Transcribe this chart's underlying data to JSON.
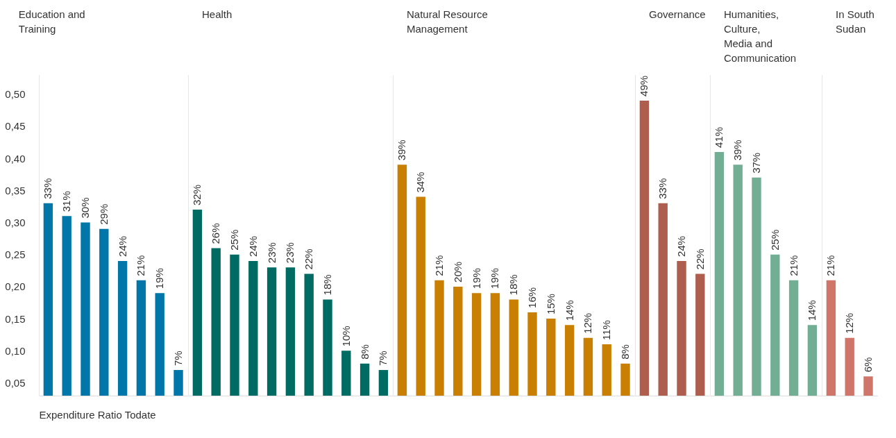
{
  "chart_data": [
    {
      "type": "bar",
      "title": "Education and Training",
      "categories": [
        null,
        null,
        null,
        null,
        null,
        null,
        null,
        null
      ],
      "values": [
        0.33,
        0.31,
        0.3,
        0.29,
        0.24,
        0.21,
        0.19,
        0.07
      ],
      "color": "#0077a8",
      "value_labels": [
        "33%",
        "31%",
        "30%",
        "29%",
        "24%",
        "21%",
        "19%",
        "7%"
      ],
      "ylim": [
        0.03,
        0.53
      ],
      "yticks": [
        {
          "value": 0.05,
          "label": "0,05"
        },
        {
          "value": 0.1,
          "label": "0,10"
        },
        {
          "value": 0.15,
          "label": "0,15"
        },
        {
          "value": 0.2,
          "label": "0,20"
        },
        {
          "value": 0.25,
          "label": "0,25"
        },
        {
          "value": 0.3,
          "label": "0,30"
        },
        {
          "value": 0.35,
          "label": "0,35"
        },
        {
          "value": 0.4,
          "label": "0,40"
        },
        {
          "value": 0.45,
          "label": "0,45"
        },
        {
          "value": 0.5,
          "label": "0,50"
        }
      ],
      "tick_labels": "y",
      "annotations": [
        "Expenditure Ratio Todate"
      ]
    },
    {
      "type": "bar",
      "title": "Health",
      "categories": [
        null,
        null,
        null,
        null,
        null,
        null,
        null,
        null,
        null,
        null,
        null
      ],
      "values": [
        0.32,
        0.26,
        0.25,
        0.24,
        0.23,
        0.23,
        0.22,
        0.18,
        0.1,
        0.08,
        0.07
      ],
      "color": "#006b63",
      "value_labels": [
        "32%",
        "26%",
        "25%",
        "24%",
        "23%",
        "23%",
        "22%",
        "18%",
        "10%",
        "8%",
        "7%"
      ],
      "ylim": [
        0.03,
        0.53
      ],
      "tick_labels": false
    },
    {
      "type": "bar",
      "title": "Natural Resource Management",
      "categories": [
        null,
        null,
        null,
        null,
        null,
        null,
        null,
        null,
        null,
        null,
        null,
        null,
        null
      ],
      "values": [
        0.39,
        0.34,
        0.21,
        0.2,
        0.19,
        0.19,
        0.18,
        0.16,
        0.15,
        0.14,
        0.12,
        0.11,
        0.08
      ],
      "color": "#c97f02",
      "value_labels": [
        "39%",
        "34%",
        "21%",
        "20%",
        "19%",
        "19%",
        "18%",
        "16%",
        "15%",
        "14%",
        "12%",
        "11%",
        "8%"
      ],
      "ylim": [
        0.03,
        0.53
      ],
      "tick_labels": false
    },
    {
      "type": "bar",
      "title": "Governance",
      "categories": [
        null,
        null,
        null,
        null
      ],
      "values": [
        0.49,
        0.33,
        0.24,
        0.22
      ],
      "color": "#ad5e4f",
      "value_labels": [
        "49%",
        "33%",
        "24%",
        "22%"
      ],
      "ylim": [
        0.03,
        0.53
      ],
      "tick_labels": false
    },
    {
      "type": "bar",
      "title": "Humanities, Culture, Media and Communication",
      "categories": [
        null,
        null,
        null,
        null,
        null,
        null
      ],
      "values": [
        0.41,
        0.39,
        0.37,
        0.25,
        0.21,
        0.14
      ],
      "color": "#72ae93",
      "value_labels": [
        "41%",
        "39%",
        "37%",
        "25%",
        "21%",
        "14%"
      ],
      "ylim": [
        0.03,
        0.53
      ],
      "tick_labels": false
    },
    {
      "type": "bar",
      "title": "In South Sudan",
      "categories": [
        null,
        null,
        null
      ],
      "values": [
        0.21,
        0.12,
        0.06
      ],
      "color": "#d0756a",
      "value_labels": [
        "21%",
        "12%",
        "6%"
      ],
      "ylim": [
        0.03,
        0.53
      ],
      "tick_labels": false
    }
  ]
}
